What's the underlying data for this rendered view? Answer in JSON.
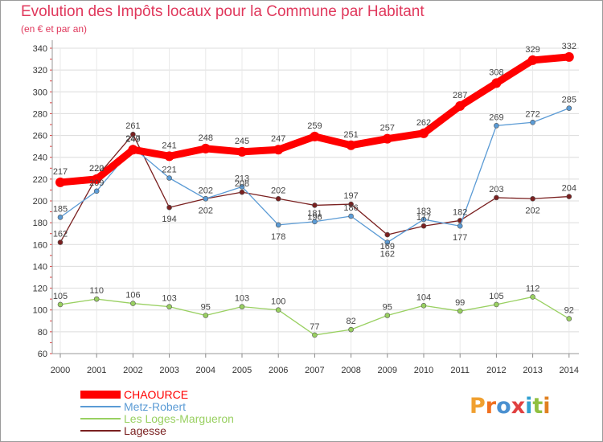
{
  "header": {
    "title": "Evolution des Impôts locaux pour la Commune par Habitant",
    "subtitle": "(en € et par an)"
  },
  "logo": {
    "text": "Proxiti",
    "colors": [
      "#f0a030",
      "#f07020",
      "#4a90d0",
      "#e04040",
      "#30a0d0",
      "#90c040",
      "#e08020"
    ]
  },
  "chart_data": {
    "type": "line",
    "title": "Evolution des Impôts locaux pour la Commune par Habitant",
    "subtitle": "(en € et par an)",
    "xlabel": "",
    "ylabel": "",
    "x": [
      2000,
      2001,
      2002,
      2003,
      2004,
      2005,
      2006,
      2007,
      2008,
      2009,
      2010,
      2011,
      2012,
      2013,
      2014
    ],
    "ylim": [
      60,
      340
    ],
    "yticks": [
      60,
      80,
      100,
      120,
      140,
      160,
      180,
      200,
      220,
      240,
      260,
      280,
      300,
      320,
      340
    ],
    "grid": true,
    "legend": "bottom-left",
    "series": [
      {
        "name": "CHAOURCE",
        "color": "#ff0000",
        "values": [
          217,
          220,
          247,
          241,
          248,
          245,
          247,
          259,
          251,
          257,
          262,
          287,
          308,
          329,
          332
        ]
      },
      {
        "name": "Metz-Robert",
        "color": "#5b9bd5",
        "values": [
          185,
          209,
          249,
          221,
          202,
          213,
          178,
          181,
          186,
          162,
          183,
          177,
          269,
          272,
          285
        ]
      },
      {
        "name": "Les Loges-Margueron",
        "color": "#99d061",
        "values": [
          105,
          110,
          106,
          103,
          95,
          103,
          100,
          77,
          82,
          95,
          104,
          99,
          105,
          112,
          92
        ]
      },
      {
        "name": "Lagesse",
        "color": "#7a2020",
        "values": [
          162,
          222,
          261,
          194,
          202,
          208,
          202,
          196,
          197,
          169,
          177,
          182,
          203,
          202,
          204
        ]
      }
    ]
  }
}
